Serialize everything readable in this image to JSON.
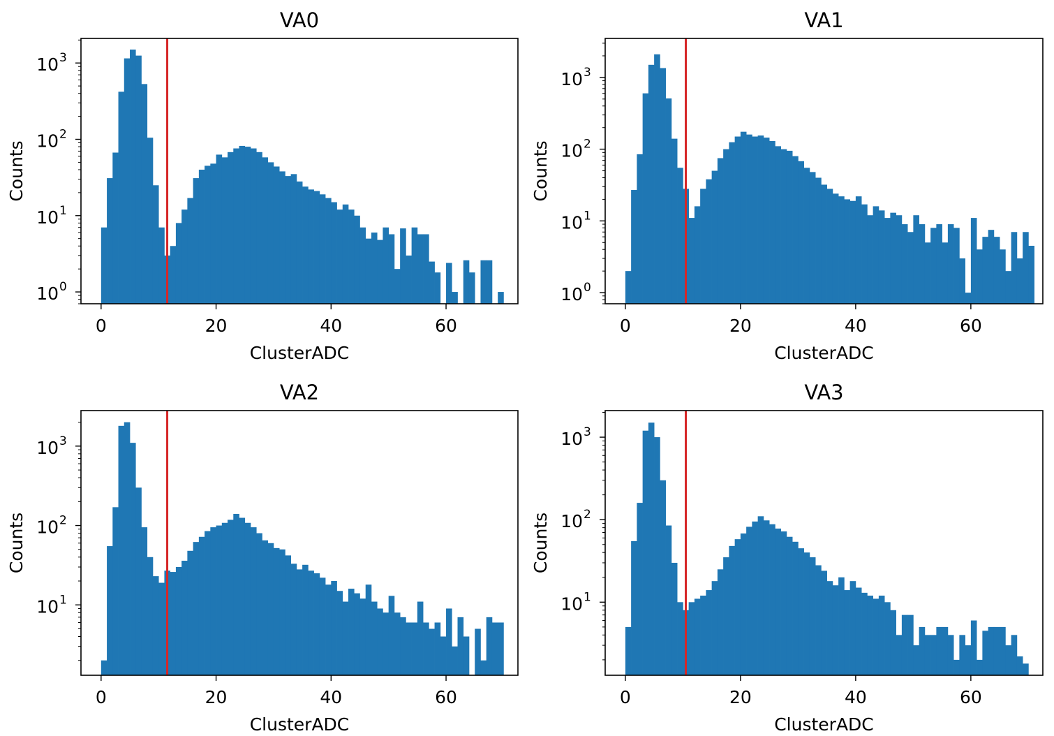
{
  "figure": {
    "bar_color": "#1f77b4",
    "threshold_color": "#d62728"
  },
  "chart_data": [
    {
      "type": "bar",
      "title": "VA0",
      "xlabel": "ClusterADC",
      "ylabel": "Counts",
      "yscale": "log",
      "xlim": [
        -3.5,
        72.5
      ],
      "ylim": [
        0.7,
        2100
      ],
      "xticks": [
        0,
        20,
        40,
        60
      ],
      "yticks": [
        1,
        10,
        100,
        1000
      ],
      "ytick_labels": [
        {
          "base": "10",
          "exp": "0"
        },
        {
          "base": "10",
          "exp": "1"
        },
        {
          "base": "10",
          "exp": "2"
        },
        {
          "base": "10",
          "exp": "3"
        }
      ],
      "bin_start": 0,
      "bin_width": 1,
      "values": [
        7,
        31,
        67,
        420,
        1150,
        1500,
        1250,
        530,
        105,
        25,
        7,
        3,
        4,
        8,
        12,
        17,
        31,
        40,
        45,
        48,
        63,
        58,
        68,
        76,
        82,
        80,
        76,
        68,
        58,
        50,
        44,
        38,
        33,
        35,
        28,
        24,
        22,
        21,
        19,
        17,
        15,
        12,
        14,
        12,
        10,
        7,
        5,
        6,
        4.8,
        7,
        5.7,
        2,
        6.8,
        3,
        7,
        5.7,
        5.7,
        2.5,
        1.8,
        0,
        2.4,
        1,
        0,
        2.6,
        1.8,
        0.7,
        2.6,
        2.6,
        0,
        1
      ],
      "threshold": 11.5,
      "grid": false
    },
    {
      "type": "bar",
      "title": "VA1",
      "xlabel": "ClusterADC",
      "ylabel": "Counts",
      "yscale": "log",
      "xlim": [
        -3.5,
        72.5
      ],
      "ylim": [
        0.7,
        3500
      ],
      "xticks": [
        0,
        20,
        40,
        60
      ],
      "yticks": [
        1,
        10,
        100,
        1000
      ],
      "ytick_labels": [
        {
          "base": "10",
          "exp": "0"
        },
        {
          "base": "10",
          "exp": "1"
        },
        {
          "base": "10",
          "exp": "2"
        },
        {
          "base": "10",
          "exp": "3"
        }
      ],
      "bin_start": 0,
      "bin_width": 1,
      "values": [
        2,
        27,
        85,
        600,
        1500,
        2100,
        1350,
        510,
        140,
        55,
        28,
        11,
        16,
        28,
        38,
        50,
        75,
        100,
        125,
        150,
        175,
        160,
        150,
        155,
        145,
        130,
        110,
        100,
        95,
        80,
        68,
        55,
        48,
        40,
        32,
        28,
        24,
        22,
        20,
        19,
        22,
        17,
        12,
        16,
        14,
        11,
        13,
        12,
        9,
        7,
        12,
        9,
        5,
        8,
        9,
        5,
        9,
        8,
        3,
        1,
        11,
        4,
        6,
        7.5,
        6,
        4,
        2,
        7,
        3,
        7,
        4.5
      ],
      "threshold": 10.5,
      "grid": false
    },
    {
      "type": "bar",
      "title": "VA2",
      "xlabel": "ClusterADC",
      "ylabel": "Counts",
      "yscale": "log",
      "xlim": [
        -3.5,
        72.5
      ],
      "ylim": [
        1.3,
        2800
      ],
      "xticks": [
        0,
        20,
        40,
        60
      ],
      "yticks": [
        10,
        100,
        1000
      ],
      "ytick_labels": [
        {
          "base": "10",
          "exp": "1"
        },
        {
          "base": "10",
          "exp": "2"
        },
        {
          "base": "10",
          "exp": "3"
        }
      ],
      "bin_start": 0,
      "bin_width": 1,
      "values": [
        2,
        55,
        170,
        1800,
        2000,
        1100,
        300,
        95,
        40,
        23,
        19,
        27,
        26,
        30,
        36,
        48,
        62,
        72,
        85,
        95,
        100,
        108,
        118,
        140,
        125,
        108,
        95,
        80,
        65,
        60,
        52,
        50,
        42,
        33,
        28,
        32,
        27,
        25,
        22,
        18,
        20,
        15,
        11,
        16,
        14,
        12,
        18,
        11,
        9,
        8,
        13,
        8,
        7,
        6,
        6,
        11,
        6,
        5,
        6,
        4,
        9,
        3,
        7,
        4,
        1,
        5,
        2,
        7,
        6,
        6
      ],
      "threshold": 11.5,
      "grid": false
    },
    {
      "type": "bar",
      "title": "VA3",
      "xlabel": "ClusterADC",
      "ylabel": "Counts",
      "yscale": "log",
      "xlim": [
        -3.5,
        72.5
      ],
      "ylim": [
        1.3,
        2100
      ],
      "xticks": [
        0,
        20,
        40,
        60
      ],
      "yticks": [
        10,
        100,
        1000
      ],
      "ytick_labels": [
        {
          "base": "10",
          "exp": "1"
        },
        {
          "base": "10",
          "exp": "2"
        },
        {
          "base": "10",
          "exp": "3"
        }
      ],
      "bin_start": 0,
      "bin_width": 1,
      "values": [
        5,
        55,
        160,
        1200,
        1500,
        1000,
        300,
        85,
        30,
        10,
        8,
        10,
        11,
        12,
        14,
        18,
        25,
        35,
        48,
        58,
        68,
        82,
        95,
        110,
        98,
        88,
        78,
        72,
        62,
        54,
        45,
        40,
        35,
        28,
        24,
        18,
        16,
        20,
        14,
        18,
        15,
        13,
        12,
        11,
        12,
        10,
        8,
        4,
        7,
        7,
        3,
        5,
        4,
        4,
        5,
        5,
        4,
        2,
        4,
        3,
        6,
        2,
        4.5,
        5,
        5,
        5,
        3,
        4,
        2.2,
        1.8
      ],
      "threshold": 10.5,
      "grid": false
    }
  ]
}
